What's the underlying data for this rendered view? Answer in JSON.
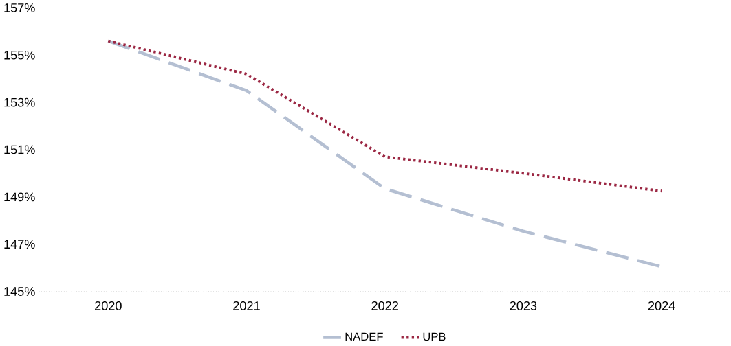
{
  "chart_data": {
    "type": "line",
    "categories": [
      "2020",
      "2021",
      "2022",
      "2023",
      "2024"
    ],
    "series": [
      {
        "name": "NADEF",
        "color": "#b4bfd2",
        "line_style": "dashed",
        "values": [
          155.6,
          153.5,
          149.35,
          147.55,
          146.05
        ]
      },
      {
        "name": "UPB",
        "color": "#9b2743",
        "line_style": "dotted",
        "values": [
          155.6,
          154.2,
          150.7,
          150.0,
          149.25
        ]
      }
    ],
    "ylim": [
      145,
      157
    ],
    "yticks": [
      {
        "value": 145,
        "label": "145%"
      },
      {
        "value": 147,
        "label": "147%"
      },
      {
        "value": 149,
        "label": "149%"
      },
      {
        "value": 151,
        "label": "151%"
      },
      {
        "value": 153,
        "label": "153%"
      },
      {
        "value": 155,
        "label": "155%"
      },
      {
        "value": 157,
        "label": "157%"
      }
    ],
    "grid": false,
    "legend": "bottom",
    "marker": "none"
  }
}
